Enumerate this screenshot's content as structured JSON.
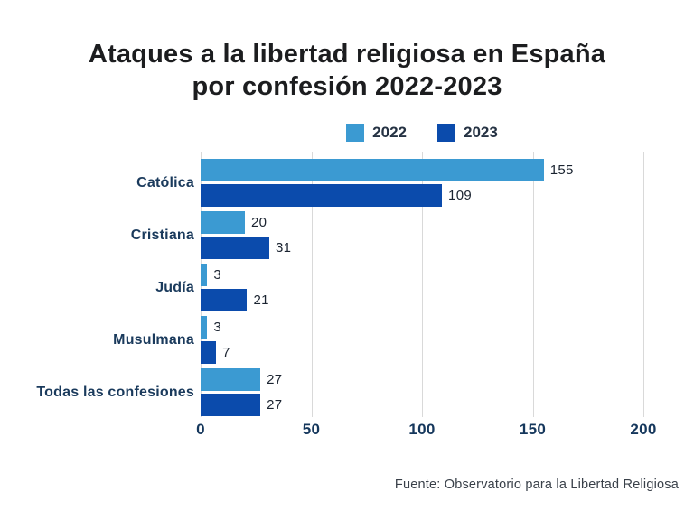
{
  "title": {
    "line1": "Ataques a la libertad religiosa en España",
    "line2": "por confesión 2022-2023"
  },
  "legend": {
    "items": [
      {
        "label": "2022",
        "color": "#3B9AD2"
      },
      {
        "label": "2023",
        "color": "#0B4BAC"
      }
    ]
  },
  "chart_data": {
    "type": "bar",
    "orientation": "horizontal",
    "title": "Ataques a la libertad religiosa en España por confesión 2022-2023",
    "categories": [
      "Católica",
      "Cristiana",
      "Judía",
      "Musulmana",
      "Todas las confesiones"
    ],
    "series": [
      {
        "name": "2022",
        "color": "#3B9AD2",
        "values": [
          155,
          20,
          3,
          3,
          27
        ]
      },
      {
        "name": "2023",
        "color": "#0B4BAC",
        "values": [
          109,
          31,
          21,
          7,
          27
        ]
      }
    ],
    "xlim": [
      0,
      200
    ],
    "xticks": [
      0,
      50,
      100,
      150,
      200
    ],
    "grid": true,
    "gridline_color": "#d9d9d9",
    "legend_position": "top",
    "value_labels": true
  },
  "footer": {
    "source": "Fuente: Observatorio para la Libertad Religiosa"
  },
  "colors": {
    "background": "#ffffff",
    "title_text": "#1c1d1f",
    "category_text": "#1a3a5c",
    "tick_text": "#15375c",
    "value_text": "#1a2330"
  }
}
